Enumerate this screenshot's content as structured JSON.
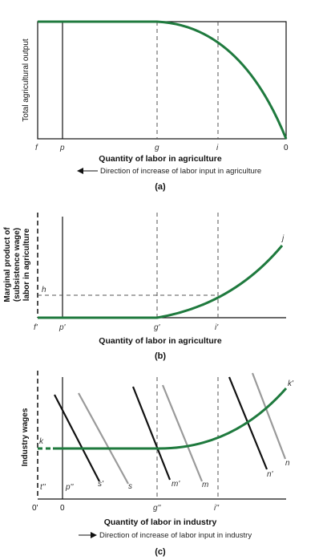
{
  "colors": {
    "curve": "#1f7a3e",
    "axis": "#111111",
    "dash": "#555555",
    "grey": "#9a9a9a"
  },
  "panel_a": {
    "ylabel": "Total agricultural output",
    "xlabel": "Quantity of labor in agriculture",
    "direction": "Direction of increase of labor input in agriculture",
    "caption": "(a)",
    "ticks": {
      "f": "f",
      "p": "p",
      "g": "g",
      "i": "i",
      "zero": "0"
    }
  },
  "panel_b": {
    "ylabel_1": "Marginal product of",
    "ylabel_2": "(subsistence wage)",
    "ylabel_3": "labor in agriculture",
    "xlabel": "Quantity of labor in agriculture",
    "caption": "(b)",
    "h": "h",
    "curve_label": "j",
    "ticks": {
      "f": "f'",
      "p": "p'",
      "g": "g'",
      "i": "i'"
    }
  },
  "panel_c": {
    "ylabel": "Industry wages",
    "xlabel": "Quantity of labor in industry",
    "direction": "Direction of increase of labor input in industry",
    "caption": "(c)",
    "k": "k",
    "k_prime": "k'",
    "t": "t''",
    "p": "p''",
    "ticks": {
      "zero_prime": "0'",
      "zero": "0",
      "g": "g''",
      "i": "i''"
    },
    "demand": {
      "s_prime": "s'",
      "s": "s",
      "m_prime": "m'",
      "m": "m",
      "n_prime": "n'",
      "n": "n"
    }
  }
}
